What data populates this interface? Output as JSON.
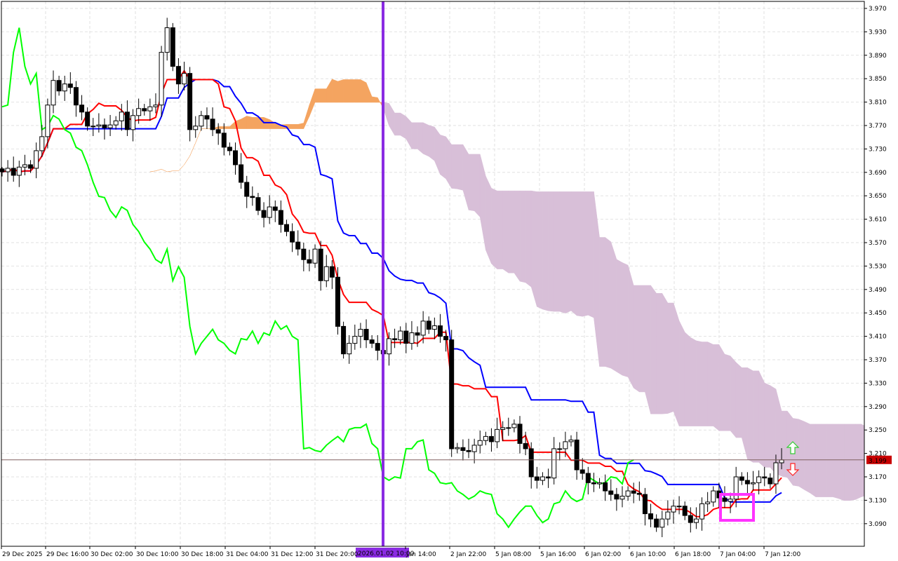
{
  "chart_data": {
    "type": "candlestick",
    "title": "",
    "indicator": "Ichimoku Kinko Hyo",
    "y_axis": {
      "ticks": [
        "3.970",
        "3.930",
        "3.890",
        "3.850",
        "3.810",
        "3.770",
        "3.730",
        "3.690",
        "3.650",
        "3.610",
        "3.570",
        "3.530",
        "3.490",
        "3.450",
        "3.410",
        "3.370",
        "3.330",
        "3.290",
        "3.250",
        "3.210",
        "3.170",
        "3.130",
        "3.090"
      ],
      "ylim": [
        3.058,
        3.985
      ]
    },
    "x_axis": {
      "ticks": [
        "29 Dec 2025",
        "29 Dec 16:00",
        "30 Dec 02:00",
        "30 Dec 10:00",
        "30 Dec 18:00",
        "31 Dec 04:00",
        "31 Dec 12:00",
        "31 Dec 20:00",
        "Jan 14:00",
        "2 Jan 22:00",
        "5 Jan 08:00",
        "5 Jan 16:00",
        "6 Jan 02:00",
        "6 Jan 10:00",
        "6 Jan 18:00",
        "7 Jan 04:00",
        "7 Jan 12:00"
      ]
    },
    "closes": [
      3.691,
      3.697,
      3.685,
      3.699,
      3.703,
      3.697,
      3.727,
      3.751,
      3.805,
      3.847,
      3.829,
      3.841,
      3.835,
      3.805,
      3.793,
      3.769,
      3.769,
      3.771,
      3.766,
      3.771,
      3.778,
      3.793,
      3.763,
      3.787,
      3.799,
      3.795,
      3.802,
      3.805,
      3.895,
      3.937,
      3.871,
      3.841,
      3.859,
      3.763,
      3.769,
      3.787,
      3.781,
      3.763,
      3.757,
      3.733,
      3.727,
      3.703,
      3.673,
      3.649,
      3.647,
      3.625,
      3.613,
      3.631,
      3.625,
      3.601,
      3.589,
      3.571,
      3.559,
      3.541,
      3.535,
      3.559,
      3.505,
      3.529,
      3.511,
      3.427,
      3.38,
      3.398,
      3.41,
      3.422,
      3.404,
      3.398,
      3.386,
      3.38,
      3.406,
      3.404,
      3.419,
      3.398,
      3.416,
      3.412,
      3.436,
      3.422,
      3.428,
      3.41,
      3.404,
      3.218,
      3.22,
      3.215,
      3.213,
      3.224,
      3.232,
      3.239,
      3.23,
      3.251,
      3.254,
      3.254,
      3.26,
      3.227,
      3.218,
      3.17,
      3.164,
      3.17,
      3.168,
      3.218,
      3.218,
      3.23,
      3.233,
      3.182,
      3.176,
      3.16,
      3.158,
      3.16,
      3.146,
      3.14,
      3.132,
      3.137,
      3.146,
      3.142,
      3.14,
      3.107,
      3.098,
      3.084,
      3.098,
      3.11,
      3.12,
      3.12,
      3.104,
      3.092,
      3.098,
      3.124,
      3.127,
      3.146,
      3.134,
      3.128,
      3.132,
      3.17,
      3.164,
      3.158,
      3.16,
      3.17,
      3.168,
      3.158,
      3.194,
      3.199
    ],
    "current_price": "3.199",
    "vertical_marker_label": "2026.01.02 10:00",
    "grid": true,
    "colors": {
      "bull_body": "#ffffff",
      "bear_body": "#000000",
      "tenkan": "#ff0000",
      "kijun": "#0000ff",
      "chikou": "#00ff00",
      "cloud_up": "#f4a460",
      "cloud_down": "#d8bfd8",
      "vertical_marker": "#8a2be2",
      "price_label": "#c80000",
      "highlight_box": "#ff33ff",
      "buy_arrow": "#33cc33",
      "sell_arrow": "#ff2222"
    },
    "annotations": [
      "buy-arrow-icon",
      "sell-arrow-icon",
      "highlight-box"
    ]
  }
}
